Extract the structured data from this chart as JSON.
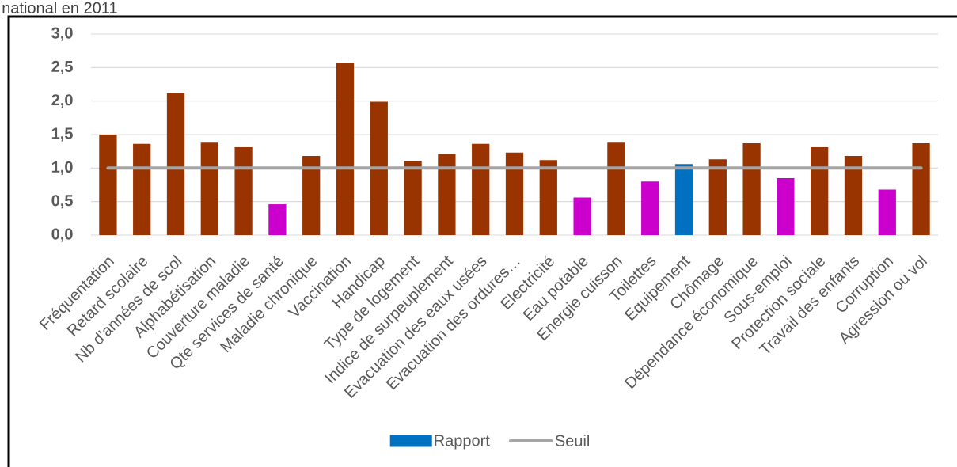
{
  "chart_data": {
    "type": "bar",
    "title": "national en 2011",
    "categories": [
      "Fréquentation",
      "Retard scolaire",
      "Nb d'années de scol",
      "Alphabétisation",
      "Couverture maladie",
      "Qté services de santé",
      "Maladie chronique",
      "Vaccination",
      "Handicap",
      "Type de logement",
      "Indice de surpeuplement",
      "Evacuation des eaux usées",
      "Evacuation des ordures…",
      "Electricité",
      "Eau potable",
      "Energie cuisson",
      "Toilettes",
      "Equipement",
      "Chômage",
      "Dépendance économique",
      "Sous-emploi",
      "Protection sociale",
      "Travail des enfants",
      "Corruption",
      "Agression ou vol"
    ],
    "series": [
      {
        "name": "Rapport",
        "color": "#0070c0",
        "colors": [
          "#993300",
          "#993300",
          "#993300",
          "#993300",
          "#993300",
          "#cc00cc",
          "#993300",
          "#993300",
          "#993300",
          "#993300",
          "#993300",
          "#993300",
          "#993300",
          "#993300",
          "#cc00cc",
          "#993300",
          "#cc00cc",
          "#0070c0",
          "#993300",
          "#993300",
          "#cc00cc",
          "#993300",
          "#993300",
          "#cc00cc",
          "#993300"
        ],
        "values": [
          1.5,
          1.36,
          2.12,
          1.38,
          1.31,
          0.46,
          1.18,
          2.57,
          1.99,
          1.11,
          1.21,
          1.36,
          1.23,
          1.12,
          0.56,
          1.38,
          0.8,
          1.06,
          1.13,
          1.37,
          0.85,
          1.31,
          1.18,
          0.68,
          1.37
        ]
      },
      {
        "name": "Seuil",
        "type": "line",
        "color": "#a5a5a5",
        "values": [
          1,
          1,
          1,
          1,
          1,
          1,
          1,
          1,
          1,
          1,
          1,
          1,
          1,
          1,
          1,
          1,
          1,
          1,
          1,
          1,
          1,
          1,
          1,
          1,
          1
        ]
      }
    ],
    "ylim": [
      0,
      3
    ],
    "yticks": [
      {
        "value": 0,
        "label": "0,0"
      },
      {
        "value": 0.5,
        "label": "0,5"
      },
      {
        "value": 1,
        "label": "1,0"
      },
      {
        "value": 1.5,
        "label": "1,5"
      },
      {
        "value": 2,
        "label": "2,0"
      },
      {
        "value": 2.5,
        "label": "2,5"
      },
      {
        "value": 3,
        "label": "3,0"
      }
    ],
    "grid": "y",
    "legend": "bottom"
  }
}
